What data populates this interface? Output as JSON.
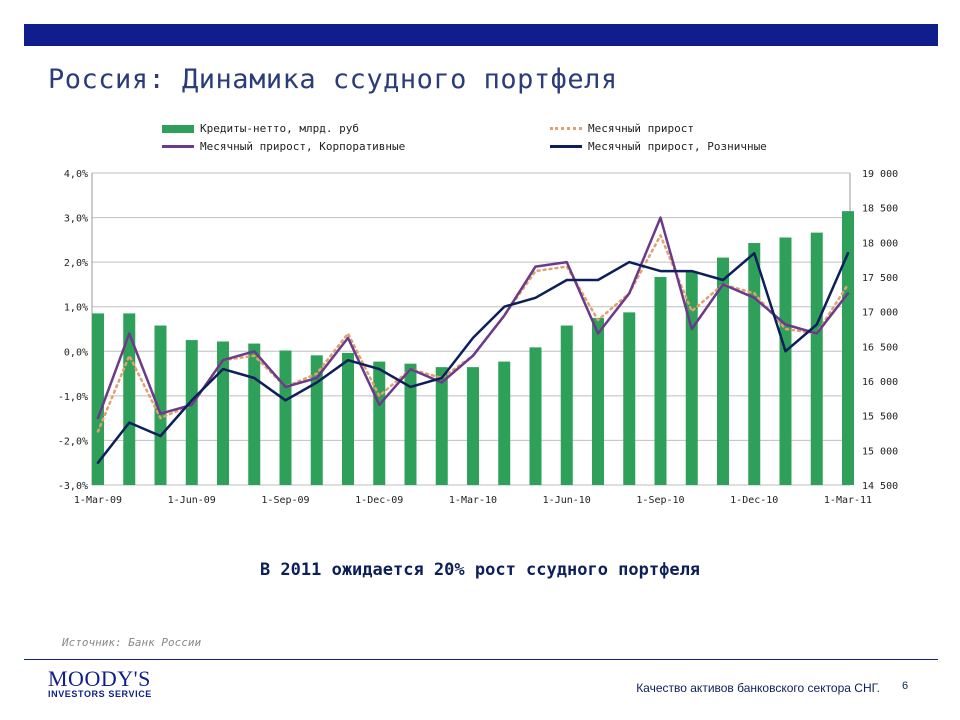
{
  "header": {
    "title": "Россия: Динамика ссудного портфеля"
  },
  "legend": {
    "bars": "Кредиты-нетто, млрд. руб",
    "total": "Месячный прирост",
    "corp": "Месячный прирост, Корпоративные",
    "retail": "Месячный прирост, Розничные"
  },
  "colors": {
    "bar": "#2ea05a",
    "total": "#e0a070",
    "corp": "#6b3a8a",
    "retail": "#0c1f5a",
    "brand": "#0f1e8c"
  },
  "chart_data": {
    "type": "bar",
    "categories": [
      "1-Mar-09",
      "1-Apr-09",
      "1-May-09",
      "1-Jun-09",
      "1-Jul-09",
      "1-Aug-09",
      "1-Sep-09",
      "1-Oct-09",
      "1-Nov-09",
      "1-Dec-09",
      "1-Jan-10",
      "1-Feb-10",
      "1-Mar-10",
      "1-Apr-10",
      "1-May-10",
      "1-Jun-10",
      "1-Jul-10",
      "1-Aug-10",
      "1-Sep-10",
      "1-Oct-10",
      "1-Nov-10",
      "1-Dec-10",
      "1-Jan-11",
      "1-Feb-11",
      "1-Mar-11"
    ],
    "x_tick_labels": [
      "1-Mar-09",
      "1-Jun-09",
      "1-Sep-09",
      "1-Dec-09",
      "1-Mar-10",
      "1-Jun-10",
      "1-Sep-10",
      "1-Dec-10",
      "1-Mar-11"
    ],
    "y_left": {
      "ylim": [
        -0.03,
        0.04
      ],
      "ticks": [
        "4,0%",
        "3,0%",
        "2,0%",
        "1,0%",
        "0,0%",
        "-1,0%",
        "-2,0%",
        "-3,0%"
      ]
    },
    "y_right": {
      "ylim": [
        14500,
        19000
      ],
      "ticks": [
        "19 000",
        "18 500",
        "18 000",
        "17 500",
        "17 000",
        "16 500",
        "16 000",
        "15 500",
        "15 000",
        "14 500"
      ]
    },
    "series": [
      {
        "name": "Кредиты-нетто, млрд. руб",
        "type": "bar",
        "axis": "right",
        "values": [
          16975,
          16975,
          16800,
          16590,
          16570,
          16540,
          16440,
          16370,
          16405,
          16280,
          16250,
          16200,
          16200,
          16280,
          16485,
          16800,
          16910,
          16990,
          17500,
          17580,
          17780,
          17990,
          18070,
          18140,
          18450
        ]
      },
      {
        "name": "Месячный прирост",
        "type": "line",
        "axis": "left",
        "values": [
          -0.018,
          -0.001,
          -0.015,
          -0.012,
          -0.002,
          -0.001,
          -0.008,
          -0.005,
          0.004,
          -0.01,
          -0.004,
          -0.006,
          -0.001,
          0.008,
          0.018,
          0.019,
          0.007,
          0.013,
          0.026,
          0.009,
          0.015,
          0.013,
          0.005,
          0.004,
          0.015
        ]
      },
      {
        "name": "Месячный прирост, Корпоративные",
        "type": "line",
        "axis": "left",
        "values": [
          -0.015,
          0.004,
          -0.014,
          -0.012,
          -0.002,
          0.0,
          -0.008,
          -0.006,
          0.003,
          -0.012,
          -0.004,
          -0.007,
          -0.001,
          0.008,
          0.019,
          0.02,
          0.004,
          0.013,
          0.03,
          0.005,
          0.015,
          0.012,
          0.006,
          0.004,
          0.013
        ]
      },
      {
        "name": "Месячный прирост, Розничные",
        "type": "line",
        "axis": "left",
        "values": [
          -0.025,
          -0.016,
          -0.019,
          -0.011,
          -0.004,
          -0.006,
          -0.011,
          -0.007,
          -0.002,
          -0.004,
          -0.008,
          -0.006,
          0.003,
          0.01,
          0.012,
          0.016,
          0.016,
          0.02,
          0.018,
          0.018,
          0.016,
          0.022,
          0.0,
          0.006,
          0.022
        ]
      }
    ]
  },
  "subtitle": "В 2011 ожидается 20% рост ссудного портфеля",
  "source": "Источник: Банк России",
  "footer": {
    "logo_main": "MOODY'S",
    "logo_sub": "INVESTORS SERVICE",
    "text": "Качество активов банковского сектора СНГ.",
    "page": "6"
  }
}
